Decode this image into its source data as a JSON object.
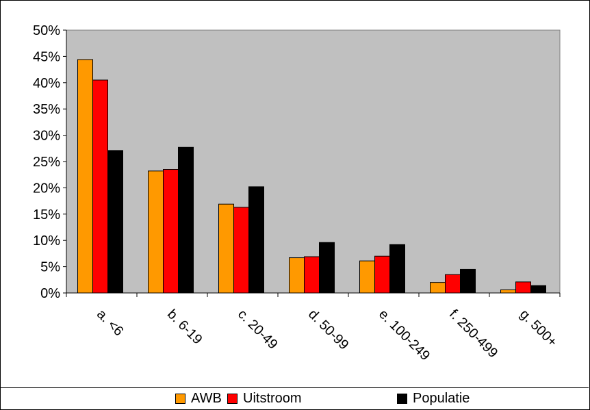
{
  "chart_data": {
    "type": "bar",
    "categories": [
      "a.  <6",
      "b.  6-19",
      "c.  20-49",
      "d.  50-99",
      "e.  100-249",
      "f.  250-499",
      "g.  500+"
    ],
    "series": [
      {
        "name": "AWB",
        "color": "#FF9900",
        "values": [
          44.4,
          23.2,
          16.9,
          6.7,
          6.1,
          2.0,
          0.6
        ]
      },
      {
        "name": "Uitstroom",
        "color": "#FF0000",
        "values": [
          40.5,
          23.5,
          16.3,
          6.9,
          7.0,
          3.5,
          2.1
        ]
      },
      {
        "name": "Populatie",
        "color": "#000000",
        "values": [
          27.1,
          27.7,
          20.2,
          9.6,
          9.2,
          4.5,
          1.4
        ]
      }
    ],
    "ylim": [
      0,
      50
    ],
    "yticks": [
      "0%",
      "5%",
      "10%",
      "15%",
      "20%",
      "25%",
      "30%",
      "35%",
      "40%",
      "45%",
      "50%"
    ],
    "plot_background": "#C0C0C0",
    "grid": false,
    "legend_position": "bottom"
  }
}
